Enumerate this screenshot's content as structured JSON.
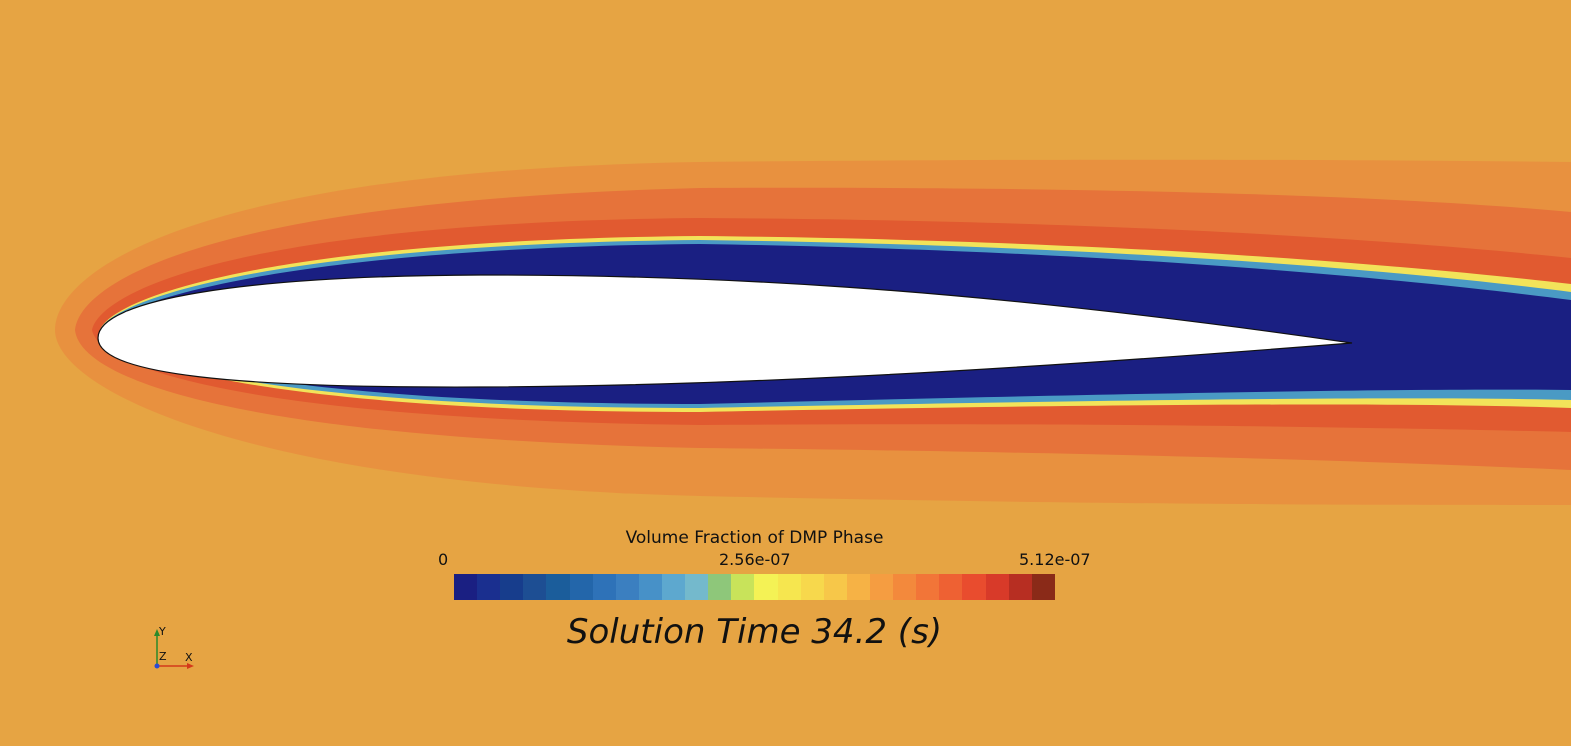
{
  "chart_data": {
    "type": "contour",
    "legend": {
      "title": "Volume Fraction of DMP Phase",
      "min_label": "0",
      "mid_label": "2.56e-07",
      "max_label": "5.12e-07",
      "min": 0,
      "max": 5.12e-07,
      "colors": [
        "#1a1f82",
        "#1a2f8f",
        "#173d8c",
        "#1d4e93",
        "#1b5d9b",
        "#2366aa",
        "#2e72b8",
        "#3b7fc0",
        "#4791c8",
        "#5da8cf",
        "#74b9cc",
        "#8ec77a",
        "#c8e35a",
        "#f4f255",
        "#f6e64f",
        "#f7d84c",
        "#f7c749",
        "#f6b245",
        "#f59d41",
        "#f3893c",
        "#f27538",
        "#ee6133",
        "#e94c2e",
        "#d83a29",
        "#b72e22",
        "#8a2a18"
      ]
    },
    "solution_time_label": "Solution Time 34.2 (s)",
    "background_value_color": "#e6a443"
  },
  "triad": {
    "x": "X",
    "y": "Y",
    "z": "Z"
  }
}
